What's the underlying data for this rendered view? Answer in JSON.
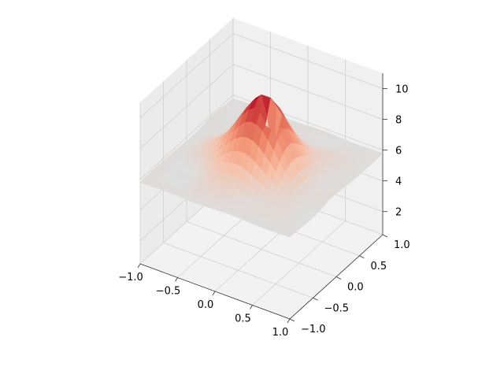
{
  "chart_data": {
    "type": "surface3d",
    "title": "",
    "xlabel": "",
    "ylabel": "",
    "zlabel": "",
    "colormap": "coolwarm",
    "xlim": [
      -1.0,
      1.0
    ],
    "ylim": [
      -1.0,
      1.0
    ],
    "zlim": [
      0.5,
      11.0
    ],
    "x_ticks": [
      "−1.0",
      "−0.5",
      "0.0",
      "0.5",
      "1.0"
    ],
    "y_ticks": [
      "−1.0",
      "−0.5",
      "0.0",
      "0.5",
      "1.0"
    ],
    "z_ticks": [
      "2",
      "4",
      "6",
      "8",
      "10"
    ],
    "x_tick_values": [
      -1.0,
      -0.5,
      0.0,
      0.5,
      1.0
    ],
    "y_tick_values": [
      -1.0,
      -0.5,
      0.0,
      0.5,
      1.0
    ],
    "z_tick_values": [
      2,
      4,
      6,
      8,
      10
    ],
    "surface_features": {
      "center_value": 10.5,
      "edge_value": 5.8,
      "pit_value": 1.0,
      "pit_x": 0.15,
      "pit_y": -0.05
    },
    "grid": true
  }
}
